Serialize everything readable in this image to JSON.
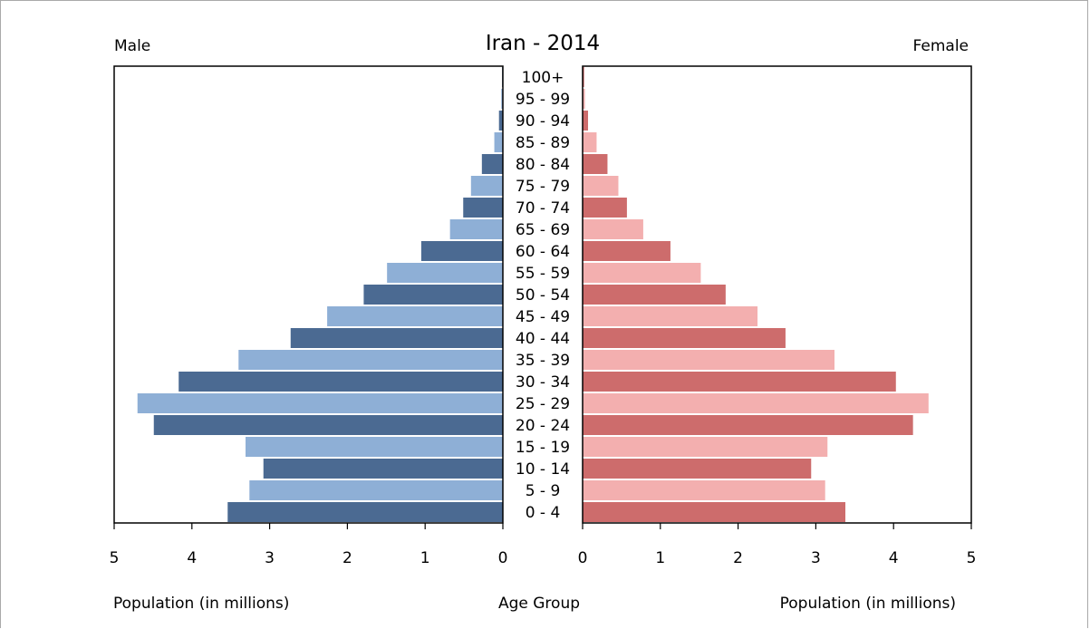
{
  "chart_data": {
    "type": "bar",
    "title": "Iran - 2014",
    "left_label": "Male",
    "right_label": "Female",
    "left_xlabel": "Population (in millions)",
    "right_xlabel": "Population (in millions)",
    "center_xlabel": "Age Group",
    "xlim": [
      0,
      5
    ],
    "x_ticks": [
      "5",
      "4",
      "3",
      "2",
      "1",
      "0",
      "0",
      "1",
      "2",
      "3",
      "4",
      "5"
    ],
    "categories": [
      "100+",
      "95 - 99",
      "90 - 94",
      "85 - 89",
      "80 - 84",
      "75 - 79",
      "70 - 74",
      "65 - 69",
      "60 - 64",
      "55 - 59",
      "50 - 54",
      "45 - 49",
      "40 - 44",
      "35 - 39",
      "30 - 34",
      "25 - 29",
      "20 - 24",
      "15 - 19",
      "10 - 14",
      "5 - 9",
      "0 - 4"
    ],
    "series": [
      {
        "name": "Male",
        "values": [
          0.01,
          0.02,
          0.05,
          0.11,
          0.27,
          0.41,
          0.51,
          0.68,
          1.05,
          1.49,
          1.79,
          2.26,
          2.73,
          3.4,
          4.17,
          4.7,
          4.49,
          3.31,
          3.08,
          3.26,
          3.54
        ],
        "colors": [
          "#4b6a92",
          "#8eafd6"
        ]
      },
      {
        "name": "Female",
        "values": [
          0.02,
          0.03,
          0.07,
          0.18,
          0.32,
          0.46,
          0.57,
          0.78,
          1.13,
          1.52,
          1.84,
          2.25,
          2.61,
          3.24,
          4.03,
          4.45,
          4.25,
          3.15,
          2.94,
          3.12,
          3.38
        ],
        "colors": [
          "#cd6c6c",
          "#f3afaf"
        ]
      }
    ]
  }
}
